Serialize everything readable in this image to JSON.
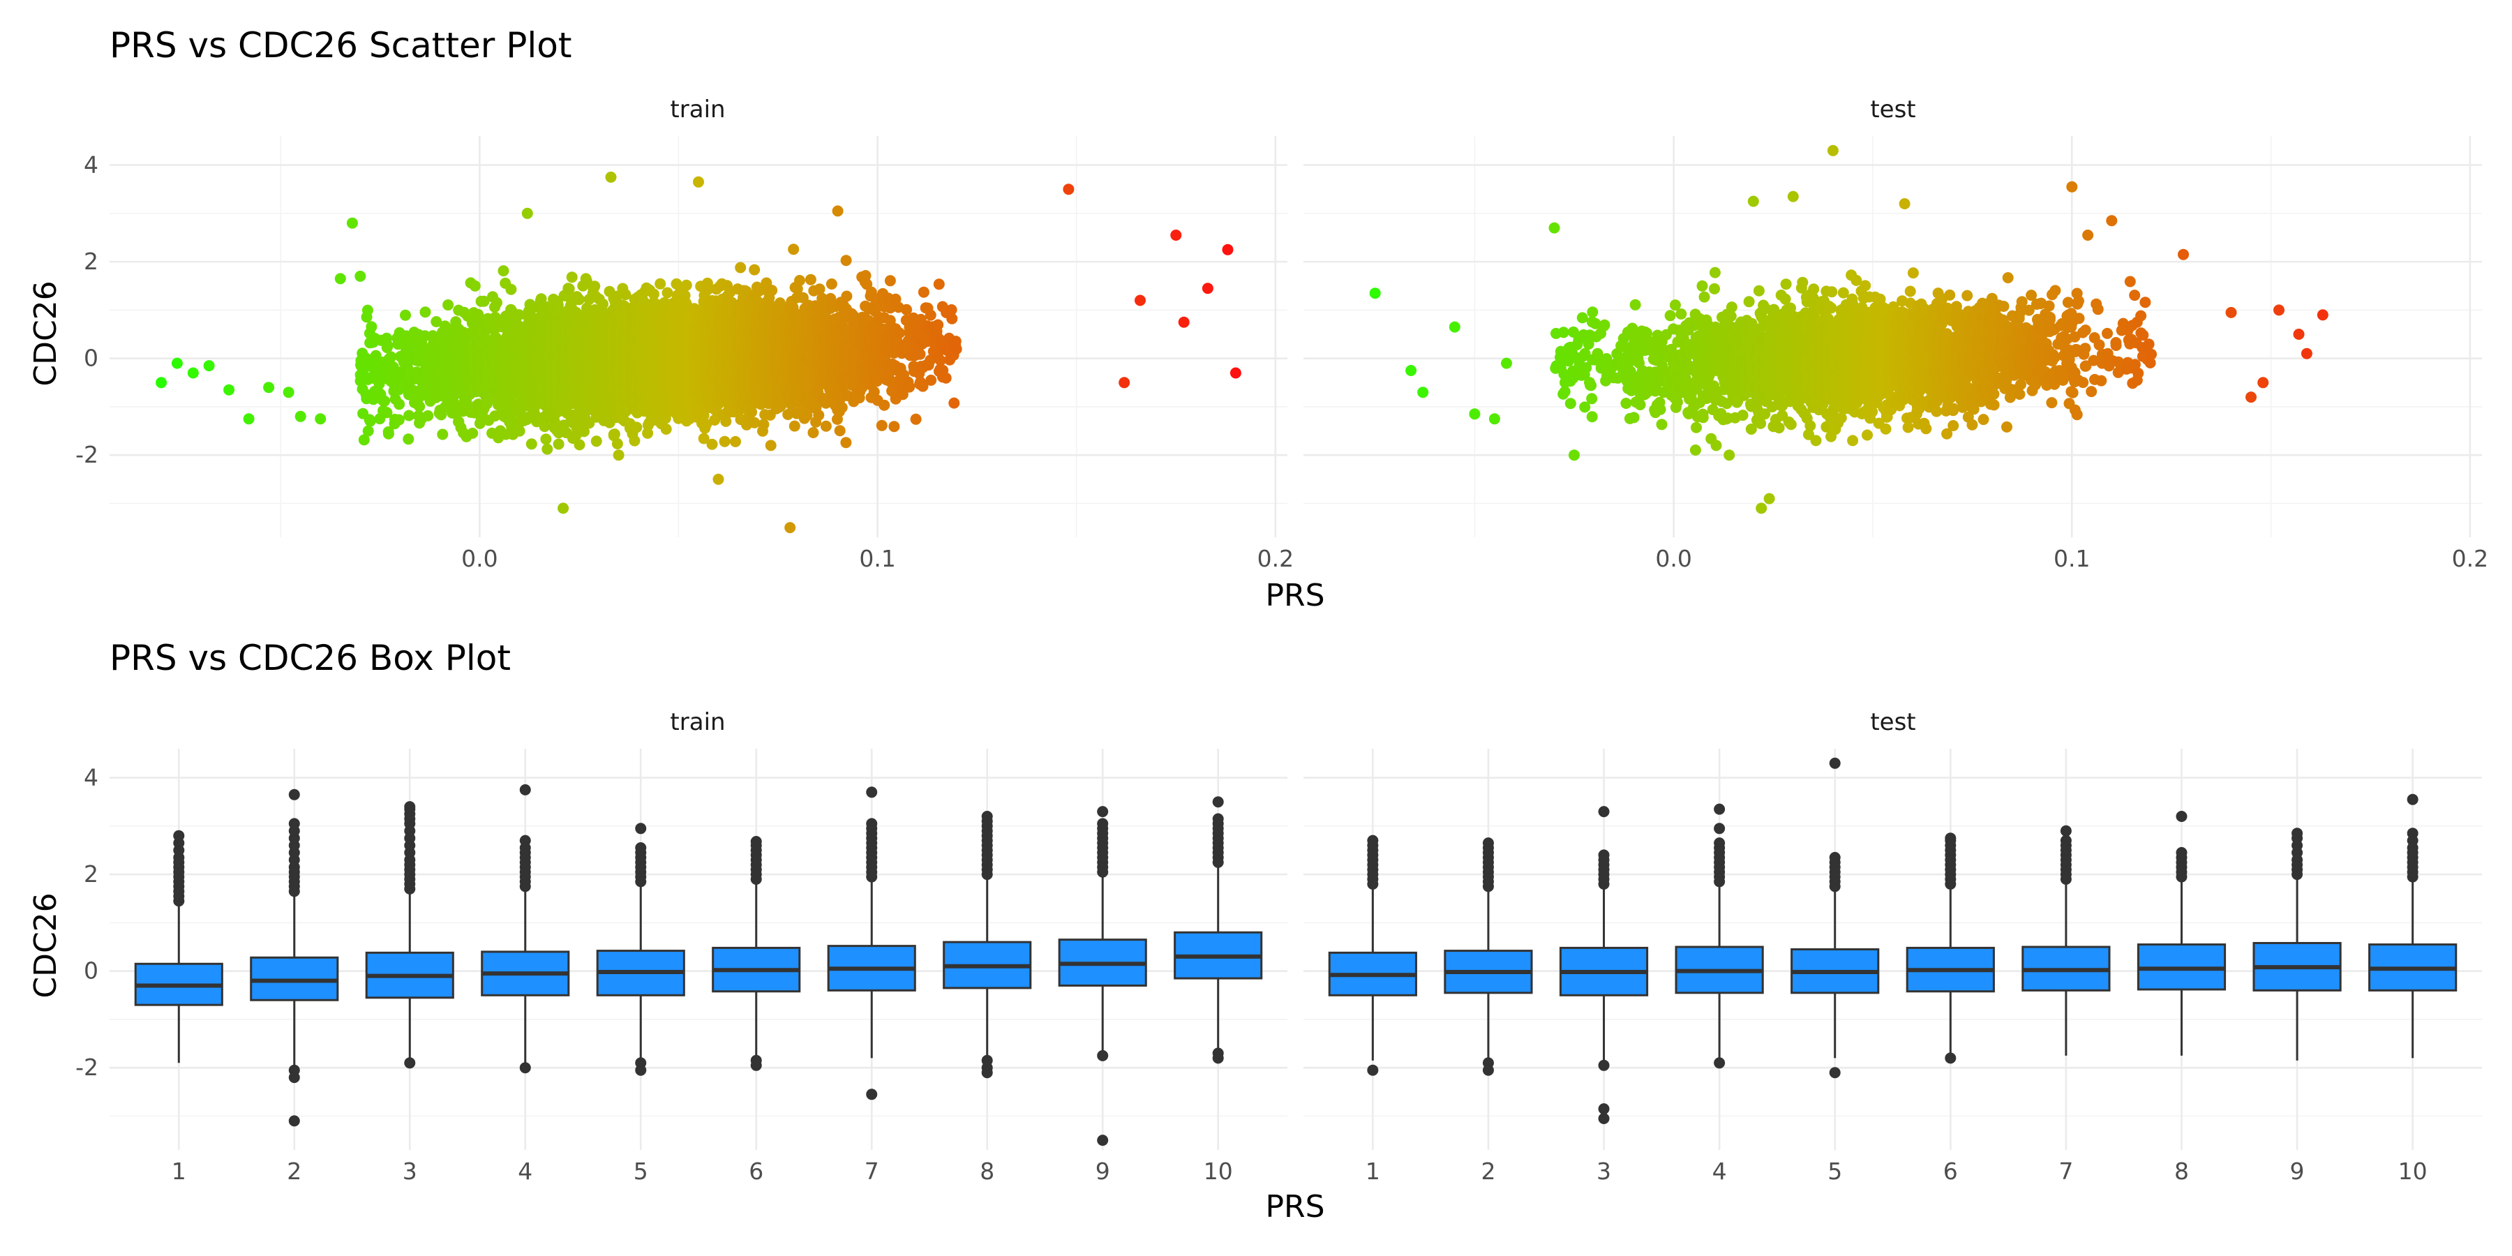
{
  "chart_data": [
    {
      "type": "scatter",
      "title": "PRS vs CDC26 Scatter Plot",
      "xlabel": "PRS",
      "ylabel": "CDC26",
      "facets": [
        "train",
        "test"
      ],
      "xlim": [
        -0.093,
        0.203
      ],
      "ylim": [
        -3.7,
        4.6
      ],
      "x_ticks": [
        0.0,
        0.1,
        0.2
      ],
      "x_tick_labels": [
        "0.0",
        "0.1",
        "0.2"
      ],
      "y_ticks": [
        -2,
        0,
        2,
        4
      ],
      "y_tick_labels": [
        "-2",
        "0",
        "2",
        "4"
      ],
      "grid": true,
      "color_scale": {
        "low": "#00ff00",
        "mid": "#c8b400",
        "high": "#ff0000",
        "by": "PRS"
      },
      "panels": {
        "train": {
          "n_points": 7000,
          "bulk": {
            "x_mean": 0.045,
            "x_sd": 0.03,
            "y_mean": 0.0,
            "y_sd": 0.55
          },
          "points": [
            [
              -0.08,
              -0.5
            ],
            [
              -0.076,
              -0.1
            ],
            [
              -0.072,
              -0.3
            ],
            [
              -0.068,
              -0.15
            ],
            [
              -0.063,
              -0.65
            ],
            [
              -0.058,
              -1.25
            ],
            [
              -0.053,
              -0.6
            ],
            [
              -0.048,
              -0.7
            ],
            [
              -0.045,
              -1.2
            ],
            [
              -0.04,
              -1.25
            ],
            [
              -0.035,
              1.65
            ],
            [
              -0.032,
              2.8
            ],
            [
              -0.03,
              1.7
            ],
            [
              -0.028,
              -1.5
            ],
            [
              0.012,
              3.0
            ],
            [
              0.021,
              -3.1
            ],
            [
              0.033,
              3.75
            ],
            [
              0.055,
              3.65
            ],
            [
              0.06,
              -2.5
            ],
            [
              0.078,
              -3.5
            ],
            [
              0.09,
              3.05
            ],
            [
              0.148,
              3.5
            ],
            [
              0.162,
              -0.5
            ],
            [
              0.166,
              1.2
            ],
            [
              0.175,
              2.55
            ],
            [
              0.177,
              0.75
            ],
            [
              0.183,
              1.45
            ],
            [
              0.188,
              2.25
            ],
            [
              0.19,
              -0.3
            ]
          ]
        },
        "test": {
          "n_points": 3000,
          "bulk": {
            "x_mean": 0.045,
            "x_sd": 0.03,
            "y_mean": 0.0,
            "y_sd": 0.55
          },
          "points": [
            [
              -0.075,
              1.35
            ],
            [
              -0.066,
              -0.25
            ],
            [
              -0.063,
              -0.7
            ],
            [
              -0.055,
              0.65
            ],
            [
              -0.05,
              -1.15
            ],
            [
              -0.045,
              -1.25
            ],
            [
              -0.042,
              -0.1
            ],
            [
              -0.03,
              2.7
            ],
            [
              -0.025,
              -2.0
            ],
            [
              0.02,
              3.25
            ],
            [
              0.022,
              -3.1
            ],
            [
              0.024,
              -2.9
            ],
            [
              0.03,
              3.35
            ],
            [
              0.04,
              4.3
            ],
            [
              0.058,
              3.2
            ],
            [
              0.1,
              3.55
            ],
            [
              0.104,
              2.55
            ],
            [
              0.11,
              2.85
            ],
            [
              0.128,
              2.15
            ],
            [
              0.14,
              0.95
            ],
            [
              0.145,
              -0.8
            ],
            [
              0.148,
              -0.5
            ],
            [
              0.152,
              1.0
            ],
            [
              0.157,
              0.5
            ],
            [
              0.159,
              0.1
            ],
            [
              0.163,
              0.9
            ]
          ]
        }
      }
    },
    {
      "type": "box",
      "title": "PRS vs CDC26 Box Plot",
      "xlabel": "PRS",
      "ylabel": "CDC26",
      "facets": [
        "train",
        "test"
      ],
      "categories": [
        "1",
        "2",
        "3",
        "4",
        "5",
        "6",
        "7",
        "8",
        "9",
        "10"
      ],
      "ylim": [
        -3.7,
        4.6
      ],
      "y_ticks": [
        -2,
        0,
        2,
        4
      ],
      "y_tick_labels": [
        "-2",
        "0",
        "2",
        "4"
      ],
      "fill": "#1e90ff",
      "grid": true,
      "series": [
        {
          "facet": "train",
          "boxes": [
            {
              "q1": -0.7,
              "median": -0.3,
              "q3": 0.15,
              "lower": -1.9,
              "upper": 1.4,
              "outliers": [
                1.45,
                1.55,
                1.65,
                1.75,
                1.85,
                1.95,
                2.05,
                2.15,
                2.25,
                2.35,
                2.5,
                2.65,
                2.8
              ]
            },
            {
              "q1": -0.6,
              "median": -0.2,
              "q3": 0.28,
              "lower": -1.95,
              "upper": 1.6,
              "outliers": [
                1.65,
                1.75,
                1.85,
                1.95,
                2.05,
                2.15,
                2.3,
                2.45,
                2.6,
                2.75,
                2.9,
                3.05,
                3.65,
                -2.05,
                -2.2,
                -3.1
              ]
            },
            {
              "q1": -0.55,
              "median": -0.1,
              "q3": 0.38,
              "lower": -1.8,
              "upper": 1.65,
              "outliers": [
                1.7,
                1.8,
                1.9,
                2.0,
                2.1,
                2.2,
                2.3,
                2.45,
                2.6,
                2.75,
                2.9,
                3.05,
                3.15,
                3.25,
                3.35,
                3.4,
                -1.9
              ]
            },
            {
              "q1": -0.5,
              "median": -0.05,
              "q3": 0.4,
              "lower": -1.9,
              "upper": 1.7,
              "outliers": [
                1.75,
                1.85,
                1.95,
                2.05,
                2.15,
                2.25,
                2.35,
                2.45,
                2.55,
                2.7,
                3.75,
                -2.0
              ]
            },
            {
              "q1": -0.5,
              "median": -0.02,
              "q3": 0.42,
              "lower": -1.85,
              "upper": 1.8,
              "outliers": [
                1.85,
                1.95,
                2.05,
                2.15,
                2.25,
                2.35,
                2.45,
                2.55,
                2.95,
                -1.9,
                -2.05
              ]
            },
            {
              "q1": -0.42,
              "median": 0.02,
              "q3": 0.48,
              "lower": -1.8,
              "upper": 1.85,
              "outliers": [
                1.9,
                2.0,
                2.1,
                2.2,
                2.3,
                2.4,
                2.5,
                2.6,
                2.68,
                -1.85,
                -1.95
              ]
            },
            {
              "q1": -0.4,
              "median": 0.05,
              "q3": 0.52,
              "lower": -1.8,
              "upper": 1.9,
              "outliers": [
                1.95,
                2.05,
                2.15,
                2.25,
                2.35,
                2.45,
                2.55,
                2.65,
                2.75,
                2.85,
                2.95,
                3.05,
                3.7,
                -2.55
              ]
            },
            {
              "q1": -0.35,
              "median": 0.1,
              "q3": 0.6,
              "lower": -1.75,
              "upper": 1.95,
              "outliers": [
                2.0,
                2.1,
                2.2,
                2.3,
                2.4,
                2.5,
                2.6,
                2.7,
                2.8,
                2.9,
                3.0,
                3.1,
                3.2,
                -1.85,
                -2.0,
                -2.1
              ]
            },
            {
              "q1": -0.3,
              "median": 0.15,
              "q3": 0.65,
              "lower": -1.7,
              "upper": 2.0,
              "outliers": [
                2.05,
                2.15,
                2.25,
                2.35,
                2.45,
                2.55,
                2.65,
                2.75,
                2.85,
                2.95,
                3.05,
                3.3,
                -1.75,
                -3.5
              ]
            },
            {
              "q1": -0.15,
              "median": 0.3,
              "q3": 0.8,
              "lower": -1.6,
              "upper": 2.2,
              "outliers": [
                2.25,
                2.35,
                2.45,
                2.55,
                2.65,
                2.75,
                2.85,
                2.95,
                3.05,
                3.15,
                3.5,
                -1.7,
                -1.8
              ]
            }
          ]
        },
        {
          "facet": "test",
          "boxes": [
            {
              "q1": -0.5,
              "median": -0.08,
              "q3": 0.38,
              "lower": -1.85,
              "upper": 1.75,
              "outliers": [
                1.8,
                1.9,
                2.0,
                2.1,
                2.2,
                2.3,
                2.4,
                2.5,
                2.6,
                2.7,
                -2.05
              ]
            },
            {
              "q1": -0.45,
              "median": -0.02,
              "q3": 0.42,
              "lower": -1.8,
              "upper": 1.7,
              "outliers": [
                1.75,
                1.85,
                1.95,
                2.05,
                2.15,
                2.25,
                2.35,
                2.45,
                2.55,
                2.65,
                -1.9,
                -2.05
              ]
            },
            {
              "q1": -0.5,
              "median": -0.02,
              "q3": 0.48,
              "lower": -1.85,
              "upper": 1.75,
              "outliers": [
                1.8,
                1.9,
                2.0,
                2.1,
                2.2,
                2.3,
                2.4,
                3.3,
                -1.95,
                -2.85,
                -3.05
              ]
            },
            {
              "q1": -0.45,
              "median": 0.0,
              "q3": 0.5,
              "lower": -1.8,
              "upper": 1.8,
              "outliers": [
                1.85,
                1.95,
                2.05,
                2.15,
                2.25,
                2.35,
                2.45,
                2.55,
                2.65,
                2.95,
                3.35,
                -1.9
              ]
            },
            {
              "q1": -0.45,
              "median": -0.02,
              "q3": 0.45,
              "lower": -1.8,
              "upper": 1.7,
              "outliers": [
                1.75,
                1.85,
                1.95,
                2.05,
                2.15,
                2.25,
                2.35,
                4.3,
                -2.1
              ]
            },
            {
              "q1": -0.42,
              "median": 0.02,
              "q3": 0.48,
              "lower": -1.7,
              "upper": 1.75,
              "outliers": [
                1.8,
                1.9,
                2.0,
                2.1,
                2.2,
                2.3,
                2.4,
                2.5,
                2.6,
                2.7,
                2.75,
                -1.8
              ]
            },
            {
              "q1": -0.4,
              "median": 0.02,
              "q3": 0.5,
              "lower": -1.75,
              "upper": 1.85,
              "outliers": [
                1.9,
                2.0,
                2.1,
                2.2,
                2.3,
                2.4,
                2.5,
                2.6,
                2.7,
                2.9
              ]
            },
            {
              "q1": -0.38,
              "median": 0.05,
              "q3": 0.55,
              "lower": -1.75,
              "upper": 1.9,
              "outliers": [
                1.95,
                2.05,
                2.15,
                2.25,
                2.35,
                2.45,
                3.2
              ]
            },
            {
              "q1": -0.4,
              "median": 0.08,
              "q3": 0.58,
              "lower": -1.85,
              "upper": 1.95,
              "outliers": [
                2.0,
                2.1,
                2.2,
                2.3,
                2.45,
                2.6,
                2.75,
                2.85
              ]
            },
            {
              "q1": -0.4,
              "median": 0.05,
              "q3": 0.55,
              "lower": -1.8,
              "upper": 1.9,
              "outliers": [
                1.95,
                2.05,
                2.15,
                2.25,
                2.35,
                2.45,
                2.55,
                2.7,
                2.85,
                3.55
              ]
            }
          ]
        }
      ]
    }
  ]
}
